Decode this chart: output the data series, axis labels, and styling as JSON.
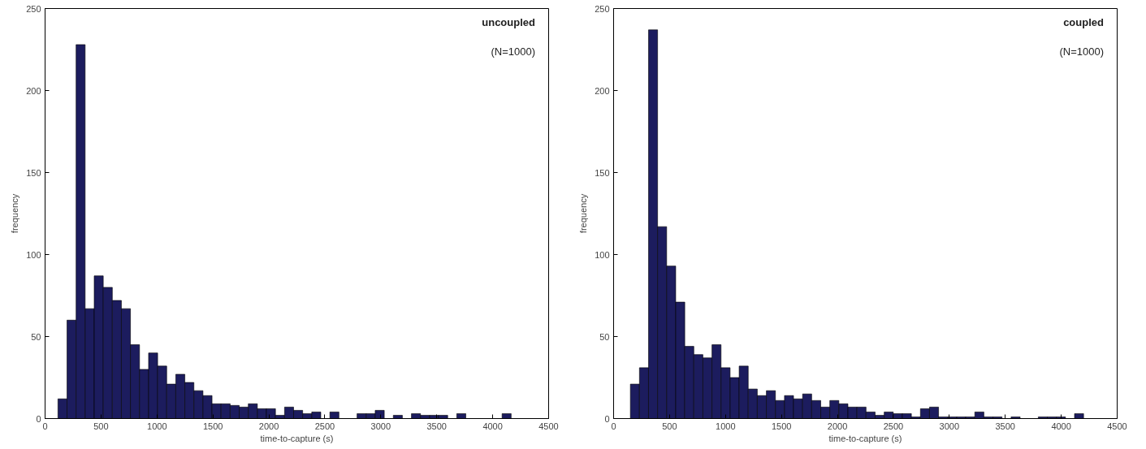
{
  "chart_data": [
    {
      "type": "histogram",
      "xlabel": "time-to-capture (s)",
      "ylabel": "frequency",
      "annotations": [
        "uncoupled",
        "(N=1000)"
      ],
      "color": "#1c1c5e",
      "bins": [
        115,
        196,
        277,
        358,
        439,
        520,
        601,
        682,
        763,
        844,
        925,
        1006,
        1087,
        1168,
        1249,
        1330,
        1411,
        1492,
        1573,
        1654,
        1735,
        1816,
        1897,
        1978,
        2059,
        2140,
        2221,
        2302,
        2383,
        2464,
        2545,
        2626,
        2707,
        2788,
        2869,
        2950,
        3031,
        3112,
        3193,
        3274,
        3355,
        3436,
        3517,
        3598,
        3679,
        3760,
        3841,
        3922,
        4003,
        4084,
        4165
      ],
      "values": [
        12,
        60,
        228,
        67,
        87,
        80,
        72,
        67,
        45,
        30,
        40,
        32,
        21,
        27,
        22,
        17,
        14,
        9,
        9,
        8,
        7,
        9,
        6,
        6,
        2,
        7,
        5,
        3,
        4,
        0,
        4,
        0,
        0,
        3,
        3,
        5,
        0,
        2,
        0,
        3,
        2,
        2,
        2,
        0,
        3,
        0,
        0,
        0,
        0,
        3
      ],
      "xlim": [
        0,
        4500
      ],
      "xticks": [
        0,
        500,
        1000,
        1500,
        2000,
        2500,
        3000,
        3500,
        4000,
        4500
      ],
      "ylim": [
        0,
        250
      ],
      "yticks": [
        0,
        50,
        100,
        150,
        200,
        250
      ]
    },
    {
      "type": "histogram",
      "xlabel": "time-to-capture (s)",
      "ylabel": "frequency",
      "annotations": [
        "coupled",
        "(N=1000)"
      ],
      "color": "#1c1c5e",
      "bins": [
        150,
        231,
        312,
        393,
        474,
        555,
        636,
        717,
        798,
        879,
        960,
        1041,
        1122,
        1203,
        1284,
        1365,
        1446,
        1527,
        1608,
        1689,
        1770,
        1851,
        1932,
        2013,
        2094,
        2175,
        2256,
        2337,
        2418,
        2499,
        2580,
        2661,
        2742,
        2823,
        2904,
        2985,
        3066,
        3147,
        3228,
        3309,
        3390,
        3471,
        3552,
        3633,
        3714,
        3795,
        3876,
        3957,
        4038,
        4119,
        4200
      ],
      "values": [
        21,
        31,
        237,
        117,
        93,
        71,
        44,
        39,
        37,
        45,
        31,
        25,
        32,
        18,
        14,
        17,
        11,
        14,
        12,
        15,
        11,
        7,
        11,
        9,
        7,
        7,
        4,
        2,
        4,
        3,
        3,
        1,
        6,
        7,
        1,
        1,
        1,
        1,
        4,
        1,
        1,
        0,
        1,
        0,
        0,
        1,
        1,
        1,
        0,
        3
      ],
      "xlim": [
        0,
        4500
      ],
      "xticks": [
        0,
        500,
        1000,
        1500,
        2000,
        2500,
        3000,
        3500,
        4000,
        4500
      ],
      "ylim": [
        0,
        250
      ],
      "yticks": [
        0,
        50,
        100,
        150,
        200,
        250
      ]
    }
  ]
}
